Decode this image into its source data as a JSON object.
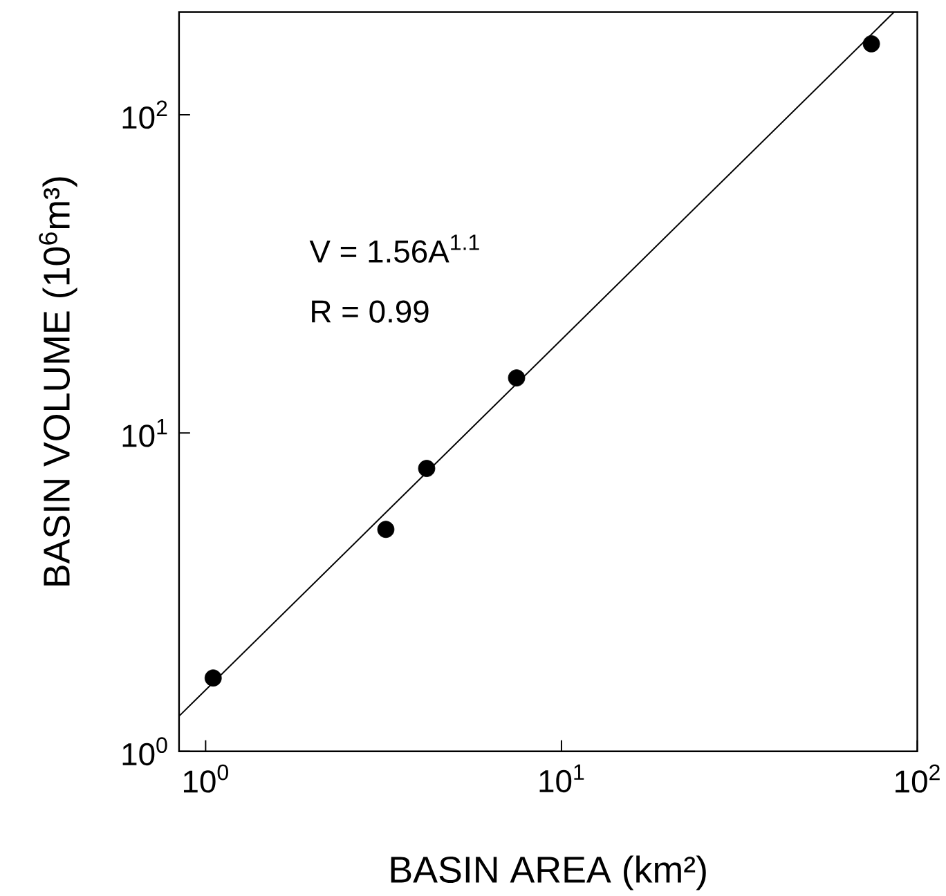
{
  "chart_data": {
    "type": "scatter",
    "xlabel": "BASIN AREA (km²)",
    "ylabel": "BASIN VOLUME (10$^{6}$m³)",
    "log": "xy",
    "xlim": [
      0.842,
      100
    ],
    "ylim": [
      1,
      210
    ],
    "xticks": [
      {
        "value": 1,
        "label": "10$^{0}$"
      },
      {
        "value": 10,
        "label": "10$^{1}$"
      },
      {
        "value": 100,
        "label": "10$^{2}$"
      }
    ],
    "yticks": [
      {
        "value": 1,
        "label": "10$^{0}$"
      },
      {
        "value": 10,
        "label": "10$^{1}$"
      },
      {
        "value": 100,
        "label": "10$^{2}$"
      }
    ],
    "grid": false,
    "annotations": [
      "V = 1.56A$^{1.1}$",
      "R = 0.99"
    ],
    "series": [
      {
        "marker": "circle",
        "color": "#000000",
        "x": [
          1.05,
          3.21,
          4.18,
          7.48,
          74.3
        ],
        "values": [
          1.7,
          4.98,
          7.74,
          14.9,
          167
        ]
      },
      {
        "type": "line",
        "marker": "none",
        "line_style": "solid",
        "color": "#000000",
        "x": [
          0.842,
          86
        ],
        "values": [
          1.29,
          210
        ]
      }
    ]
  }
}
